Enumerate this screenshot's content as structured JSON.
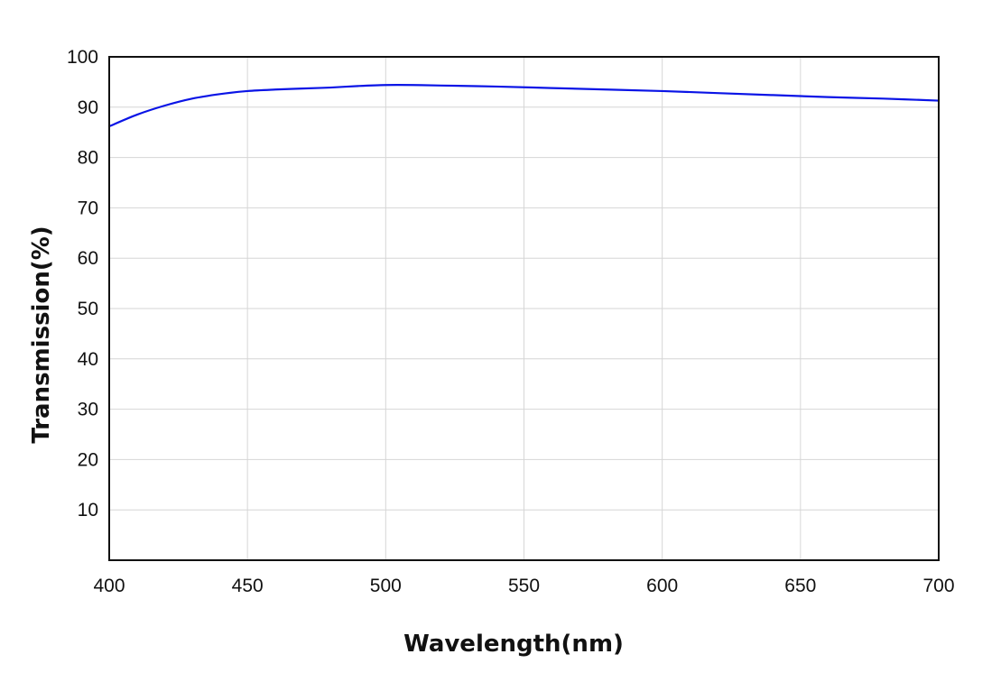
{
  "chart_data": {
    "type": "line",
    "title": "",
    "xlabel": "Wavelength(nm)",
    "ylabel": "Transmission(%)",
    "xlim": [
      400,
      700
    ],
    "ylim": [
      0,
      100
    ],
    "x_ticks": [
      400,
      450,
      500,
      550,
      600,
      650,
      700
    ],
    "y_ticks": [
      10,
      20,
      30,
      40,
      50,
      60,
      70,
      80,
      90,
      100
    ],
    "grid": true,
    "colors": {
      "series": "#0a14e6",
      "grid": "#d6d6d6",
      "axis": "#111111"
    },
    "series": [
      {
        "name": "Transmission",
        "x": [
          400,
          410,
          420,
          430,
          440,
          450,
          460,
          470,
          480,
          490,
          500,
          510,
          520,
          540,
          560,
          580,
          600,
          620,
          640,
          660,
          680,
          700
        ],
        "y": [
          86.2,
          88.5,
          90.3,
          91.7,
          92.6,
          93.2,
          93.5,
          93.7,
          93.9,
          94.2,
          94.4,
          94.4,
          94.3,
          94.1,
          93.8,
          93.5,
          93.2,
          92.8,
          92.4,
          92.0,
          91.7,
          91.3
        ]
      }
    ]
  }
}
